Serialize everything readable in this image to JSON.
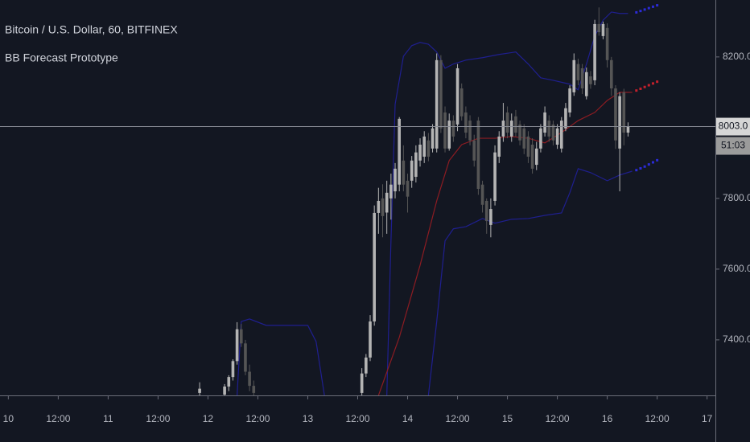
{
  "chart_data": {
    "type": "candlestick",
    "title": "Bitcoin / U.S. Dollar, 60, BITFINEX",
    "subtitle": "BB Forecast Prototype",
    "xlim": [
      -2,
      170
    ],
    "ylim": [
      7243,
      8361
    ],
    "xticks": [
      {
        "value": 0,
        "label": "10"
      },
      {
        "value": 12,
        "label": "12:00"
      },
      {
        "value": 24,
        "label": "11"
      },
      {
        "value": 36,
        "label": "12:00"
      },
      {
        "value": 48,
        "label": "12"
      },
      {
        "value": 60,
        "label": "12:00"
      },
      {
        "value": 72,
        "label": "13"
      },
      {
        "value": 84,
        "label": "12:00"
      },
      {
        "value": 96,
        "label": "14"
      },
      {
        "value": 108,
        "label": "12:00"
      },
      {
        "value": 120,
        "label": "15"
      },
      {
        "value": 132,
        "label": "12:00"
      },
      {
        "value": 144,
        "label": "16"
      },
      {
        "value": 156,
        "label": "12:00"
      },
      {
        "value": 168,
        "label": "17"
      }
    ],
    "yticks": [
      {
        "value": 7400,
        "label": "7400.0"
      },
      {
        "value": 7600,
        "label": "7600.0"
      },
      {
        "value": 7800,
        "label": "7800.0"
      },
      {
        "value": 8200,
        "label": "8200.0"
      }
    ],
    "last_price": {
      "value": 8003,
      "label": "8003.0"
    },
    "countdown": "51:03",
    "up_color": "#b4b4b4",
    "down_color": "#555555",
    "candles": {
      "x": [
        46,
        52,
        53,
        54,
        55,
        56,
        57,
        58,
        59,
        85,
        86,
        87,
        88,
        89,
        90,
        91,
        92,
        93,
        94,
        95,
        96,
        97,
        98,
        99,
        100,
        101,
        102,
        103,
        104,
        105,
        106,
        107,
        108,
        109,
        110,
        111,
        112,
        113,
        114,
        115,
        116,
        117,
        118,
        119,
        120,
        121,
        122,
        123,
        124,
        125,
        126,
        127,
        128,
        129,
        130,
        131,
        132,
        133,
        134,
        135,
        136,
        137,
        138,
        139,
        140,
        141,
        142,
        143,
        144,
        145,
        146,
        147,
        148,
        149
      ],
      "open": [
        7250,
        7245,
        7268,
        7295,
        7340,
        7430,
        7390,
        7310,
        7270,
        7250,
        7305,
        7350,
        7452,
        7759,
        7800,
        7760,
        7800,
        7820,
        7839,
        7907,
        7850,
        7850,
        7861,
        7907,
        7918,
        7964,
        7941,
        7941,
        8191,
        8043,
        7941,
        8020,
        8009,
        8111,
        8043,
        8020,
        7964,
        8020,
        7839,
        7793,
        7725,
        7793,
        7918,
        7975,
        8043,
        7975,
        8032,
        8009,
        7998,
        7975,
        7952,
        7895,
        7941,
        7986,
        8020,
        8009,
        7952,
        7941,
        7998,
        8043,
        8100,
        8180,
        8168,
        8089,
        8145,
        8134,
        8293,
        8259,
        8282,
        8191,
        8111,
        7941,
        8100,
        7986
      ],
      "high": [
        7280,
        7275,
        7300,
        7345,
        7450,
        7445,
        7400,
        7330,
        7285,
        7320,
        7360,
        7470,
        7780,
        7830,
        7840,
        7850,
        7870,
        7900,
        8030,
        7950,
        7870,
        7920,
        7950,
        7970,
        7990,
        7985,
        8010,
        8210,
        8205,
        8060,
        8040,
        8035,
        8180,
        8125,
        8060,
        8035,
        7980,
        8030,
        7850,
        7800,
        7800,
        7950,
        7990,
        8070,
        8060,
        8040,
        8050,
        8020,
        8010,
        7990,
        7970,
        7960,
        8010,
        8060,
        8035,
        8020,
        8010,
        8030,
        8070,
        8120,
        8210,
        8195,
        8180,
        8170,
        8160,
        8305,
        8340,
        8300,
        8295,
        8200,
        8120,
        8100,
        8110,
        8015
      ],
      "low": [
        7243,
        7243,
        7255,
        7285,
        7330,
        7380,
        7300,
        7255,
        7243,
        7243,
        7295,
        7340,
        7440,
        7700,
        7690,
        7700,
        7740,
        7800,
        7820,
        7820,
        7760,
        7830,
        7845,
        7890,
        7900,
        7905,
        7930,
        7930,
        7985,
        7930,
        7935,
        7960,
        7990,
        8020,
        7970,
        7950,
        7890,
        7810,
        7760,
        7700,
        7690,
        7780,
        7900,
        7960,
        7970,
        7960,
        7975,
        7950,
        7925,
        7900,
        7870,
        7880,
        7930,
        7975,
        7960,
        7950,
        7940,
        7930,
        7990,
        8030,
        8090,
        8120,
        8095,
        8080,
        8110,
        8120,
        8260,
        8250,
        8170,
        8090,
        7940,
        7820,
        7950,
        7975
      ],
      "close": [
        7262,
        7268,
        7295,
        7340,
        7430,
        7390,
        7310,
        7270,
        7250,
        7305,
        7350,
        7452,
        7759,
        7793,
        7750,
        7816,
        7839,
        7884,
        8025,
        7839,
        7805,
        7907,
        7930,
        7952,
        7975,
        7918,
        7998,
        8191,
        7998,
        7941,
        8020,
        7975,
        8168,
        8032,
        7986,
        7964,
        7907,
        7827,
        7782,
        7736,
        7770,
        7930,
        7975,
        8020,
        7986,
        8020,
        7986,
        7964,
        7941,
        7918,
        7884,
        7941,
        7998,
        8043,
        7975,
        7964,
        7998,
        8020,
        8055,
        8111,
        8191,
        8134,
        8111,
        8157,
        8123,
        8293,
        8270,
        8293,
        8191,
        8111,
        7964,
        8089,
        7986,
        8003
      ]
    },
    "series": [
      {
        "color": "#1f1f8f",
        "style": "line",
        "x": [
          55,
          56,
          58,
          62,
          66,
          70,
          72,
          74,
          76,
          80,
          91,
          92,
          93,
          95,
          97,
          99,
          101,
          103,
          105,
          107,
          110,
          114,
          118,
          122,
          125,
          128,
          131,
          135,
          137,
          139,
          141,
          143,
          145,
          147,
          149
        ],
        "values": [
          7243,
          7452,
          7459,
          7441,
          7441,
          7441,
          7441,
          7395,
          7243,
          null,
          7243,
          7680,
          8066,
          8202,
          8232,
          8241,
          8236,
          8214,
          8168,
          8180,
          8191,
          8198,
          8207,
          8214,
          8180,
          8141,
          8134,
          8123,
          8107,
          8180,
          8259,
          8304,
          8327,
          8323,
          8323
        ]
      },
      {
        "color": "#8c1c22",
        "style": "line",
        "x": [
          89,
          94,
          99,
          103,
          106,
          109,
          113,
          117,
          121,
          125,
          129,
          133,
          137,
          141,
          144,
          147,
          150
        ],
        "values": [
          7243,
          7407,
          7611,
          7793,
          7907,
          7952,
          7970,
          7970,
          7975,
          7970,
          7957,
          7986,
          8020,
          8043,
          8077,
          8100,
          8100
        ]
      },
      {
        "color": "#1f1f8f",
        "style": "line",
        "x": [
          101,
          103,
          105,
          107,
          110,
          114,
          117,
          121,
          125,
          129,
          133,
          135,
          137,
          140,
          144,
          147,
          150
        ],
        "values": [
          7243,
          7452,
          7680,
          7714,
          7720,
          7743,
          7730,
          7741,
          7743,
          7752,
          7759,
          7816,
          7884,
          7873,
          7850,
          7866,
          7877
        ]
      },
      {
        "color": "#2b2bd6",
        "style": "dots",
        "x": [
          151,
          152,
          153,
          154,
          155,
          156
        ],
        "values": [
          8326,
          8330,
          8334,
          8338,
          8342,
          8346
        ]
      },
      {
        "color": "#c4202c",
        "style": "dots",
        "x": [
          151,
          152,
          153,
          154,
          155,
          156
        ],
        "values": [
          8105,
          8110,
          8115,
          8120,
          8125,
          8130
        ]
      },
      {
        "color": "#2b2bd6",
        "style": "dots",
        "x": [
          151,
          152,
          153,
          154,
          155,
          156
        ],
        "values": [
          7880,
          7885,
          7890,
          7896,
          7902,
          7908
        ]
      }
    ]
  }
}
